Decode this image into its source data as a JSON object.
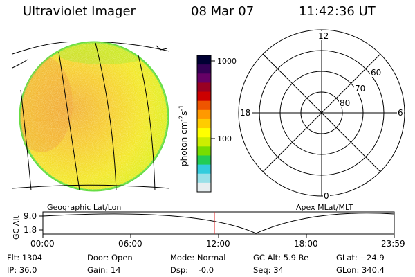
{
  "header": {
    "instrument": "Ultraviolet Imager",
    "date": "08 Mar 07",
    "time": "11:42:36 UT"
  },
  "colorbar": {
    "unit_label": "photon cm",
    "unit_sup1": "-2",
    "unit_s": "s",
    "unit_sup2": "-1",
    "tick_1000": "1000",
    "tick_100": "100",
    "colors": [
      "#000033",
      "#330055",
      "#660066",
      "#990022",
      "#cc0000",
      "#ee5500",
      "#ff9900",
      "#ffcc00",
      "#ffff00",
      "#ccee00",
      "#77dd00",
      "#22cc55",
      "#33ccdd",
      "#99e0e8",
      "#e6eef0"
    ]
  },
  "polar_plot": {
    "mlt_labels": {
      "top": "12",
      "left": "18",
      "right": "6",
      "bottom": "0"
    },
    "lat_labels": [
      "60",
      "70",
      "80"
    ]
  },
  "orbit_panel": {
    "left_title": "Geographic Lat/Lon",
    "right_title": "Apex MLat/MLT",
    "y_axis_label": "GC Alt",
    "y_ticks": [
      "9.0",
      "1.8"
    ],
    "x_ticks": [
      "00:00",
      "06:00",
      "12:00",
      "18:00",
      "23:59"
    ],
    "marker_time": "11:42:36"
  },
  "status": {
    "flt": "Flt: 1304",
    "ip": "IP: 36.0",
    "door": "Door: Open",
    "gain": "Gain: 14",
    "mode": "Mode: Normal",
    "dsp": "Dsp:    -0.0",
    "gc_alt": "GC Alt: 5.9 Re",
    "seq": "Seq: 34",
    "glat": "GLat: −24.9",
    "glon": "GLon: 340.4"
  }
}
